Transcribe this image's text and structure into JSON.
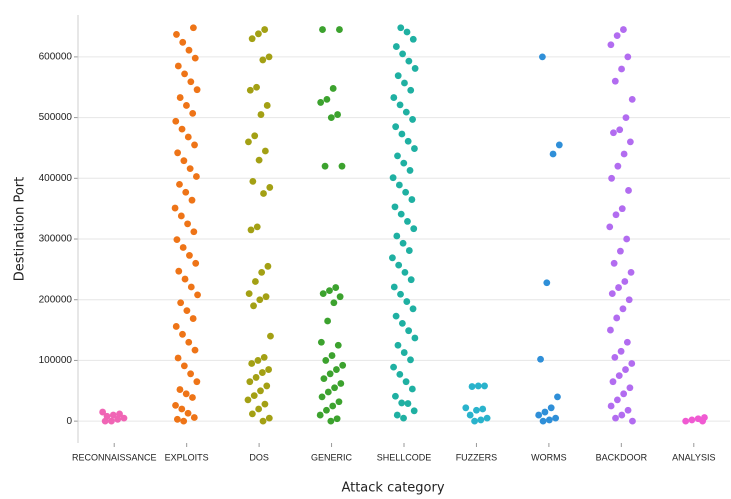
{
  "chart_data": {
    "type": "strip",
    "x_label": "Attack category",
    "y_label": "Destination Port",
    "categories": [
      "RECONNAISSANCE",
      "EXPLOITS",
      "DOS",
      "GENERIC",
      "SHELLCODE",
      "FUZZERS",
      "WORMS",
      "BACKDOOR",
      "ANALYSIS"
    ],
    "colors": [
      "#f065b5",
      "#ee7417",
      "#a3a014",
      "#3ca22e",
      "#1fb0a2",
      "#2ab3cc",
      "#2f8fd8",
      "#b26cf0",
      "#f05ad2"
    ],
    "values": [
      [
        15000,
        12000,
        10000,
        8000,
        5000,
        3000,
        0,
        0
      ],
      [
        0,
        3000,
        6000,
        13000,
        20000,
        26000,
        39000,
        45000,
        52000,
        65000,
        78000,
        91000,
        104000,
        117000,
        130000,
        143000,
        156000,
        169000,
        182000,
        195000,
        208000,
        221000,
        234000,
        247000,
        260000,
        273000,
        286000,
        299000,
        312000,
        325000,
        338000,
        351000,
        364000,
        377000,
        390000,
        403000,
        416000,
        429000,
        442000,
        455000,
        468000,
        481000,
        494000,
        507000,
        520000,
        533000,
        546000,
        559000,
        572000,
        585000,
        598000,
        611000,
        624000,
        637000,
        648000
      ],
      [
        645000,
        638000,
        630000,
        600000,
        595000,
        550000,
        545000,
        520000,
        505000,
        470000,
        460000,
        445000,
        430000,
        395000,
        385000,
        375000,
        320000,
        315000,
        255000,
        245000,
        230000,
        210000,
        205000,
        200000,
        190000,
        140000,
        105000,
        100000,
        95000,
        85000,
        80000,
        72000,
        65000,
        58000,
        50000,
        42000,
        35000,
        28000,
        20000,
        12000,
        5000,
        0
      ],
      [
        645000,
        645000,
        548000,
        530000,
        525000,
        505000,
        500000,
        420000,
        420000,
        220000,
        215000,
        210000,
        205000,
        195000,
        165000,
        130000,
        125000,
        108000,
        100000,
        92000,
        85000,
        78000,
        70000,
        62000,
        55000,
        48000,
        40000,
        32000,
        25000,
        18000,
        10000,
        4000,
        0
      ],
      [
        5000,
        10000,
        17000,
        29000,
        30000,
        41000,
        53000,
        65000,
        77000,
        89000,
        101000,
        113000,
        125000,
        137000,
        149000,
        161000,
        173000,
        185000,
        197000,
        209000,
        221000,
        233000,
        245000,
        257000,
        269000,
        281000,
        293000,
        305000,
        317000,
        329000,
        341000,
        353000,
        365000,
        377000,
        389000,
        401000,
        413000,
        425000,
        437000,
        449000,
        461000,
        473000,
        485000,
        497000,
        509000,
        521000,
        533000,
        545000,
        557000,
        569000,
        581000,
        593000,
        605000,
        617000,
        629000,
        641000,
        648000
      ],
      [
        58000,
        58000,
        57000,
        22000,
        20000,
        18000,
        10000,
        5000,
        2000,
        0
      ],
      [
        600000,
        455000,
        440000,
        228000,
        102000,
        40000,
        22000,
        15000,
        10000,
        5000,
        2000,
        0
      ],
      [
        645000,
        635000,
        620000,
        600000,
        580000,
        560000,
        530000,
        500000,
        480000,
        475000,
        460000,
        440000,
        420000,
        400000,
        380000,
        350000,
        340000,
        320000,
        300000,
        280000,
        260000,
        245000,
        230000,
        220000,
        210000,
        200000,
        185000,
        170000,
        150000,
        130000,
        115000,
        105000,
        95000,
        85000,
        75000,
        65000,
        55000,
        45000,
        35000,
        25000,
        18000,
        10000,
        5000,
        0
      ],
      [
        6000,
        4000,
        2000,
        0,
        0
      ]
    ],
    "ylim": [
      -36000,
      669000
    ],
    "yticks": [
      0,
      100000,
      200000,
      300000,
      400000,
      500000,
      600000
    ],
    "grid": true
  }
}
